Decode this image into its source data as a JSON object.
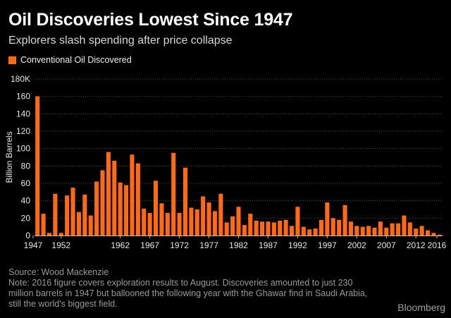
{
  "title": "Oil Discoveries Lowest Since 1947",
  "subtitle": "Explorers slash spending after price collapse",
  "legend_label": "Conventional Oil Discovered",
  "colors": {
    "bar": "#ff6a13",
    "gridline": "#4a4a4a",
    "axis": "#bbbbbb"
  },
  "source": "Source: Wood Mackenzie",
  "note": "Note: 2016 figure covers exploration results to August. Discoveries amounted to just 230 million barrels in 1947 but ballooned the following year with the Ghawar find in Saudi Arabia, still the world's biggest field.",
  "brand": "Bloomberg",
  "chart_data": {
    "type": "bar",
    "title": "Oil Discoveries Lowest Since 1947",
    "subtitle": "Explorers slash spending after price collapse",
    "xlabel": "",
    "ylabel": "Billion Barrels",
    "ylim": [
      0,
      180
    ],
    "yticks": [
      0,
      20,
      40,
      60,
      80,
      100,
      120,
      140,
      160,
      180
    ],
    "ytick_labels": [
      "0",
      "20",
      "40",
      "60",
      "80",
      "100",
      "120",
      "140",
      "160",
      "180K"
    ],
    "xtick_labels": [
      "1947",
      "1952",
      "1962",
      "1967",
      "1972",
      "1977",
      "1982",
      "1987",
      "1992",
      "1997",
      "2002",
      "2007",
      "2012",
      "2016"
    ],
    "grid": true,
    "legend": "top-left",
    "series": [
      {
        "name": "Conventional Oil Discovered",
        "categories": [
          1948,
          1949,
          1950,
          1951,
          1952,
          1953,
          1954,
          1955,
          1956,
          1957,
          1958,
          1959,
          1960,
          1961,
          1962,
          1963,
          1964,
          1965,
          1966,
          1967,
          1968,
          1969,
          1970,
          1971,
          1972,
          1973,
          1974,
          1975,
          1976,
          1977,
          1978,
          1979,
          1980,
          1981,
          1982,
          1983,
          1984,
          1985,
          1986,
          1987,
          1988,
          1989,
          1990,
          1991,
          1992,
          1993,
          1994,
          1995,
          1996,
          1997,
          1998,
          1999,
          2000,
          2001,
          2002,
          2003,
          2004,
          2005,
          2006,
          2007,
          2008,
          2009,
          2010,
          2011,
          2012,
          2013,
          2014,
          2015,
          2016
        ],
        "values": [
          160,
          25,
          3,
          48,
          3,
          46,
          55,
          27,
          47,
          23,
          62,
          75,
          96,
          86,
          61,
          58,
          93,
          83,
          31,
          26,
          63,
          37,
          26,
          95,
          26,
          78,
          32,
          30,
          45,
          38,
          28,
          48,
          15,
          22,
          33,
          12,
          25,
          17,
          16,
          16,
          15,
          17,
          18,
          11,
          33,
          10,
          7,
          8,
          18,
          38,
          20,
          18,
          35,
          16,
          11,
          10,
          11,
          9,
          16,
          9,
          14,
          14,
          23,
          15,
          8,
          11,
          6,
          3,
          1
        ]
      }
    ]
  }
}
